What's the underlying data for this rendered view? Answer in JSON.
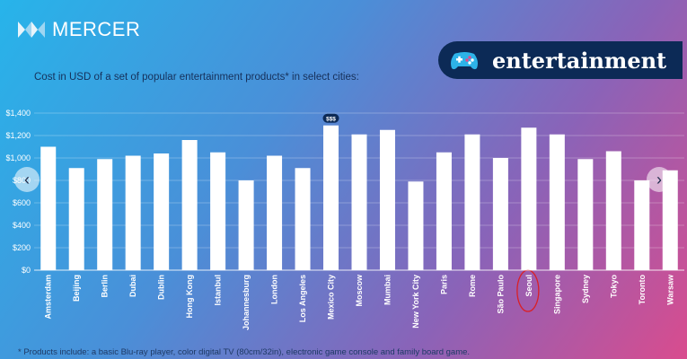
{
  "brand": {
    "name": "MERCER",
    "badge_label": "entertainment"
  },
  "subtitle": "Cost in USD of a set of popular entertainment products* in select cities:",
  "footnote": "* Products include: a basic Blu-ray player, color digital TV (80cm/32in), electronic game console and family board game.",
  "nav": {
    "prev": "‹",
    "next": "›"
  },
  "marker": {
    "label": "$$$",
    "category": "Mexico City"
  },
  "colors": {
    "bar": "#ffffff",
    "badge_bg": "#0c2a56",
    "marker_bg": "#0c2a56",
    "annotation": "#d92027"
  },
  "chart_data": {
    "type": "bar",
    "title": "Cost in USD of a set of popular entertainment products* in select cities:",
    "categories": [
      "Amsterdam",
      "Beijing",
      "Berlin",
      "Dubai",
      "Dublin",
      "Hong Kong",
      "Istanbul",
      "Johannesburg",
      "London",
      "Los Angeles",
      "Mexico City",
      "Moscow",
      "Mumbai",
      "New York City",
      "Paris",
      "Rome",
      "São Paulo",
      "Seoul",
      "Singapore",
      "Sydney",
      "Tokyo",
      "Toronto",
      "Warsaw"
    ],
    "values": [
      1100,
      910,
      990,
      1020,
      1040,
      1160,
      1050,
      800,
      1020,
      910,
      1290,
      1210,
      1250,
      790,
      1050,
      1210,
      1000,
      1270,
      1210,
      990,
      1060,
      800,
      890
    ],
    "ylim": [
      0,
      1400
    ],
    "yticks": [
      0,
      200,
      400,
      600,
      800,
      1000,
      1200,
      1400
    ],
    "ytick_labels": [
      "$0",
      "$200",
      "$400",
      "$600",
      "$800",
      "$1,000",
      "$1,200",
      "$1,400"
    ],
    "xlabel": "",
    "ylabel": "",
    "grid": true,
    "highlighted_category": "Seoul"
  }
}
